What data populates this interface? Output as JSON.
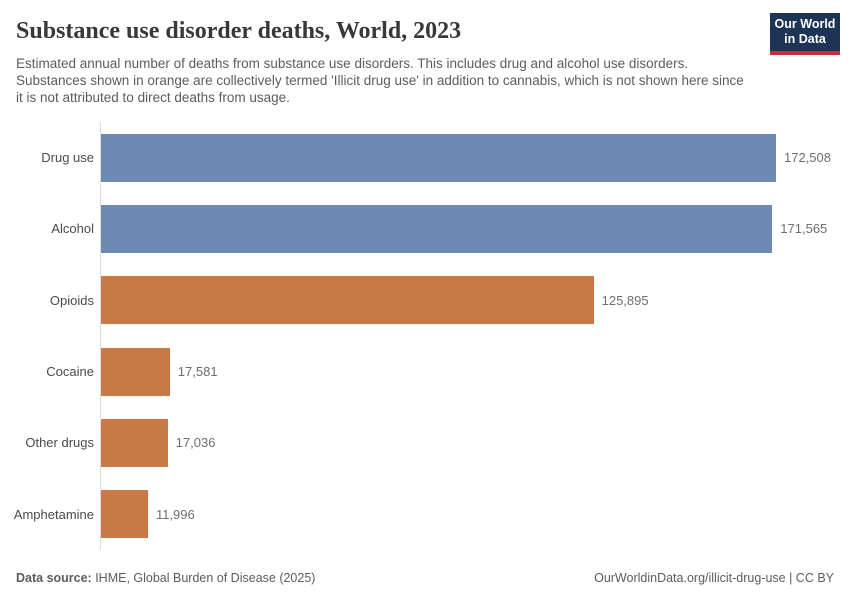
{
  "header": {
    "title": "Substance use disorder deaths, World, 2023",
    "subtitle": "Estimated annual number of deaths from substance use disorders. This includes drug and alcohol use disorders. Substances shown in orange are collectively termed 'Illicit drug use' in addition to cannabis, which is not shown here since it is not attributed to direct deaths from usage.",
    "logo_line1": "Our World",
    "logo_line2": "in Data"
  },
  "chart_data": {
    "type": "bar",
    "orientation": "horizontal",
    "title": "Substance use disorder deaths, World, 2023",
    "categories": [
      "Drug use",
      "Alcohol",
      "Opioids",
      "Cocaine",
      "Other drugs",
      "Amphetamine"
    ],
    "values": [
      172508,
      171565,
      125895,
      17581,
      17036,
      11996
    ],
    "value_labels": [
      "172,508",
      "171,565",
      "125,895",
      "17,581",
      "17,036",
      "11,996"
    ],
    "bar_colors": [
      "#6e89b4",
      "#6e89b4",
      "#c97a44",
      "#c97a44",
      "#c97a44",
      "#c97a44"
    ],
    "color_meaning": {
      "#6e89b4": "drug and alcohol use disorder totals",
      "#c97a44": "illicit drug use substances"
    },
    "xlim": [
      0,
      172508
    ],
    "grid": false,
    "legend": "none",
    "axis_line_color": "#dcdcdc"
  },
  "footer": {
    "source_label": "Data source:",
    "source_text": " IHME, Global Burden of Disease (2025)",
    "credit": "OurWorldinData.org/illicit-drug-use | CC BY"
  }
}
